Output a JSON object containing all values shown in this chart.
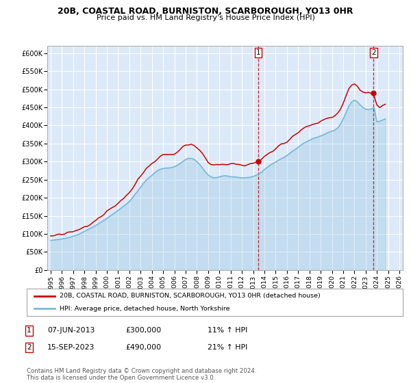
{
  "title1": "20B, COASTAL ROAD, BURNISTON, SCARBOROUGH, YO13 0HR",
  "title2": "Price paid vs. HM Land Registry's House Price Index (HPI)",
  "ylabel_ticks": [
    "£0",
    "£50K",
    "£100K",
    "£150K",
    "£200K",
    "£250K",
    "£300K",
    "£350K",
    "£400K",
    "£450K",
    "£500K",
    "£550K",
    "£600K"
  ],
  "ytick_values": [
    0,
    50000,
    100000,
    150000,
    200000,
    250000,
    300000,
    350000,
    400000,
    450000,
    500000,
    550000,
    600000
  ],
  "ylim": [
    0,
    620000
  ],
  "xlim_start": 1994.7,
  "xlim_end": 2026.3,
  "xticks": [
    1995,
    1996,
    1997,
    1998,
    1999,
    2000,
    2001,
    2002,
    2003,
    2004,
    2005,
    2006,
    2007,
    2008,
    2009,
    2010,
    2011,
    2012,
    2013,
    2014,
    2015,
    2016,
    2017,
    2018,
    2019,
    2020,
    2021,
    2022,
    2023,
    2024,
    2025,
    2026
  ],
  "bg_color": "#dce9f8",
  "grid_color": "#ffffff",
  "legend_label1": "20B, COASTAL ROAD, BURNISTON, SCARBOROUGH, YO13 0HR (detached house)",
  "legend_label2": "HPI: Average price, detached house, North Yorkshire",
  "sale1_date": 2013.44,
  "sale1_value": 300000,
  "sale2_date": 2023.71,
  "sale2_value": 490000,
  "footer": "Contains HM Land Registry data © Crown copyright and database right 2024.\nThis data is licensed under the Open Government Licence v3.0.",
  "line_color_hpi": "#7ab8d9",
  "line_color_sale": "#cc0000",
  "hpi_data_x": [
    1995.0,
    1995.25,
    1995.5,
    1995.75,
    1996.0,
    1996.25,
    1996.5,
    1996.75,
    1997.0,
    1997.25,
    1997.5,
    1997.75,
    1998.0,
    1998.25,
    1998.5,
    1998.75,
    1999.0,
    1999.25,
    1999.5,
    1999.75,
    2000.0,
    2000.25,
    2000.5,
    2000.75,
    2001.0,
    2001.25,
    2001.5,
    2001.75,
    2002.0,
    2002.25,
    2002.5,
    2002.75,
    2003.0,
    2003.25,
    2003.5,
    2003.75,
    2004.0,
    2004.25,
    2004.5,
    2004.75,
    2005.0,
    2005.25,
    2005.5,
    2005.75,
    2006.0,
    2006.25,
    2006.5,
    2006.75,
    2007.0,
    2007.25,
    2007.5,
    2007.75,
    2008.0,
    2008.25,
    2008.5,
    2008.75,
    2009.0,
    2009.25,
    2009.5,
    2009.75,
    2010.0,
    2010.25,
    2010.5,
    2010.75,
    2011.0,
    2011.25,
    2011.5,
    2011.75,
    2012.0,
    2012.25,
    2012.5,
    2012.75,
    2013.0,
    2013.25,
    2013.5,
    2013.75,
    2014.0,
    2014.25,
    2014.5,
    2014.75,
    2015.0,
    2015.25,
    2015.5,
    2015.75,
    2016.0,
    2016.25,
    2016.5,
    2016.75,
    2017.0,
    2017.25,
    2017.5,
    2017.75,
    2018.0,
    2018.25,
    2018.5,
    2018.75,
    2019.0,
    2019.25,
    2019.5,
    2019.75,
    2020.0,
    2020.25,
    2020.5,
    2020.75,
    2021.0,
    2021.25,
    2021.5,
    2021.75,
    2022.0,
    2022.25,
    2022.5,
    2022.75,
    2023.0,
    2023.25,
    2023.5,
    2023.75,
    2024.0,
    2024.25,
    2024.5,
    2024.75
  ],
  "hpi_data_y": [
    82000,
    83000,
    84000,
    85000,
    86000,
    87500,
    89000,
    91000,
    93500,
    96000,
    99000,
    103000,
    107000,
    111000,
    115000,
    119000,
    123000,
    128000,
    133000,
    138000,
    143000,
    148500,
    154000,
    159500,
    165000,
    171000,
    177000,
    183000,
    190000,
    199000,
    209000,
    219000,
    229000,
    240000,
    249000,
    256000,
    262000,
    269000,
    275000,
    279000,
    281000,
    282000,
    282500,
    283500,
    286000,
    290000,
    295000,
    300000,
    306000,
    309000,
    309000,
    306000,
    300000,
    292000,
    282000,
    272000,
    263000,
    258000,
    255000,
    256000,
    258000,
    260000,
    261000,
    260000,
    258000,
    258000,
    257000,
    256000,
    255000,
    255000,
    256000,
    257000,
    259000,
    262000,
    266000,
    271000,
    278000,
    284000,
    290000,
    295000,
    299000,
    304000,
    308000,
    312000,
    317000,
    323000,
    329000,
    334000,
    340000,
    346000,
    351000,
    355000,
    359000,
    363000,
    366000,
    368000,
    371000,
    374000,
    378000,
    382000,
    384000,
    387000,
    393000,
    403000,
    418000,
    435000,
    453000,
    465000,
    470000,
    466000,
    457000,
    450000,
    445000,
    444000,
    446000,
    449000,
    410000,
    412000,
    415000,
    418000
  ],
  "sale_hpi_at_sale1": 262500,
  "sale_hpi_at_sale2": 446000
}
